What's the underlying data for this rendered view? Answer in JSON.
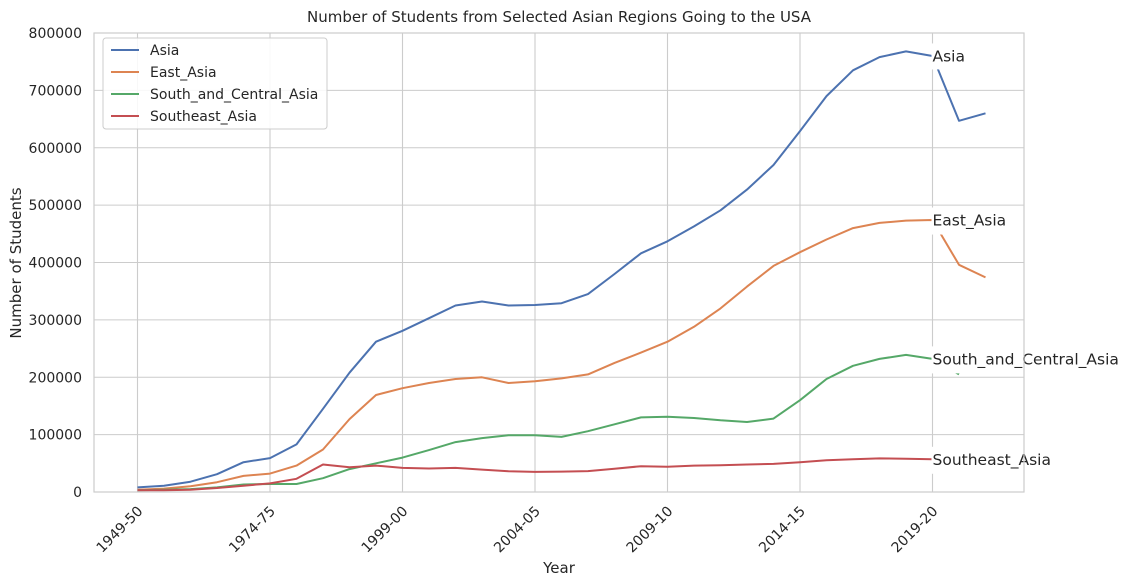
{
  "chart_data": {
    "type": "line",
    "title": "Number of Students from Selected Asian Regions Going to the USA",
    "xlabel": "Year",
    "ylabel": "Number of Students",
    "ylim": [
      0,
      800000
    ],
    "yticks": [
      "0",
      "100000",
      "200000",
      "300000",
      "400000",
      "500000",
      "600000",
      "700000",
      "800000"
    ],
    "xticks": [
      "1949-50",
      "1974-75",
      "1999-00",
      "2004-05",
      "2009-10",
      "2014-15",
      "2019-20"
    ],
    "grid": true,
    "legend_position": "top-left",
    "series": [
      {
        "name": "Asia",
        "color": "#4c72b0",
        "values": [
          8000,
          11000,
          18000,
          31000,
          52000,
          59000,
          83000,
          145000,
          208000,
          262000,
          281000,
          303000,
          325000,
          332000,
          325000,
          326000,
          329000,
          345000,
          380000,
          416000,
          437000,
          463000,
          491000,
          527000,
          570000,
          629000,
          690000,
          735000,
          758000,
          768000,
          760000,
          647000,
          660000
        ]
      },
      {
        "name": "East_Asia",
        "color": "#dd8452",
        "values": [
          4000,
          6000,
          10000,
          17000,
          28000,
          32000,
          46000,
          74000,
          127000,
          169000,
          181000,
          190000,
          197000,
          200000,
          190000,
          193000,
          198000,
          205000,
          225000,
          243000,
          262000,
          288000,
          320000,
          358000,
          394000,
          418000,
          440000,
          460000,
          469000,
          473000,
          474000,
          396000,
          374000
        ]
      },
      {
        "name": "South_and_Central_Asia",
        "color": "#55a868",
        "values": [
          3000,
          4000,
          5000,
          8000,
          13000,
          14000,
          14000,
          24000,
          40000,
          50000,
          60000,
          73000,
          87000,
          94000,
          99000,
          99000,
          96000,
          106000,
          118000,
          130000,
          131000,
          129000,
          125000,
          122000,
          128000,
          160000,
          197000,
          220000,
          232000,
          239000,
          232000,
          205000,
          null
        ]
      },
      {
        "name": "Southeast_Asia",
        "color": "#c44e52",
        "values": [
          3000,
          3000,
          4000,
          7000,
          11000,
          15000,
          23000,
          48000,
          43000,
          46000,
          42000,
          41000,
          42000,
          39000,
          36000,
          35000,
          35500,
          36500,
          40500,
          45000,
          44000,
          46000,
          46500,
          48000,
          49000,
          52000,
          55500,
          57000,
          58500,
          58000,
          57000,
          null,
          null
        ]
      }
    ],
    "annotations": [
      {
        "text": "Asia",
        "series": "Asia"
      },
      {
        "text": "East_Asia",
        "series": "East_Asia"
      },
      {
        "text": "South_and_Central_Asia",
        "series": "South_and_Central_Asia"
      },
      {
        "text": "Southeast_Asia",
        "series": "Southeast_Asia"
      }
    ]
  }
}
